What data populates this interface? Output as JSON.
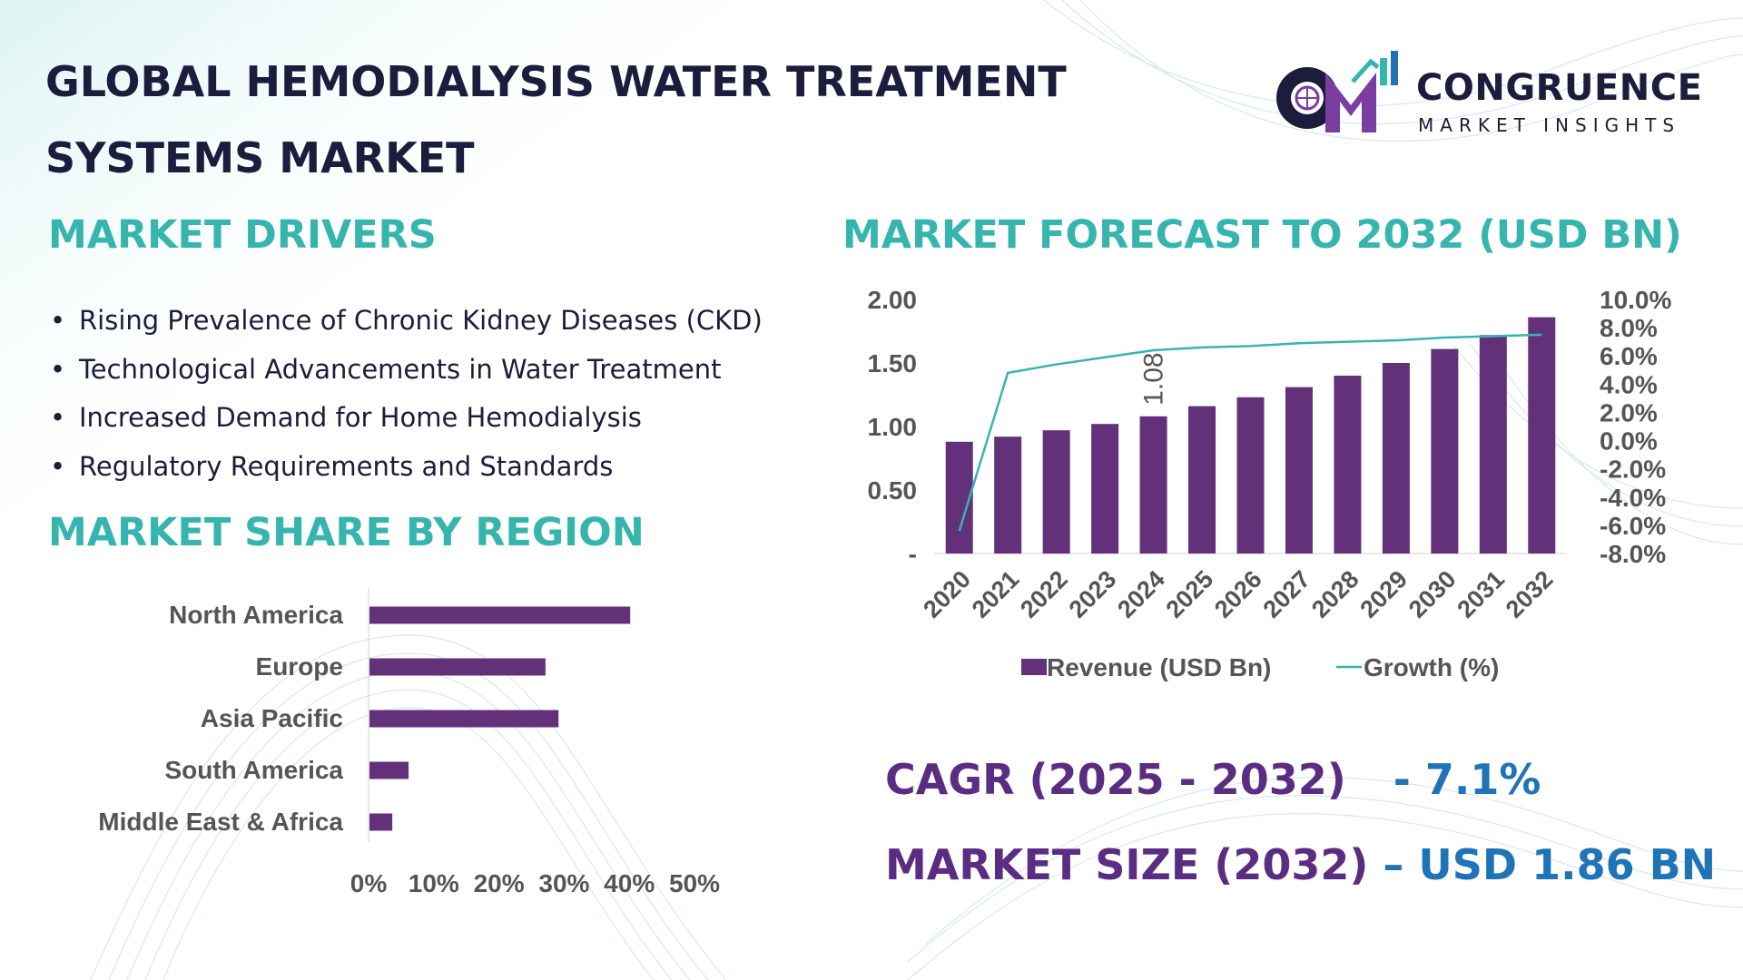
{
  "title_line1": "GLOBAL HEMODIALYSIS WATER TREATMENT",
  "title_line2": "SYSTEMS MARKET",
  "logo": {
    "name": "CONGRUENCE",
    "tagline": "MARKET INSIGHTS"
  },
  "drivers": {
    "heading": "MARKET DRIVERS",
    "items": [
      "Rising Prevalence of Chronic Kidney Diseases (CKD)",
      "Technological Advancements in Water Treatment",
      "Increased Demand for Home Hemodialysis",
      "Regulatory Requirements and Standards"
    ]
  },
  "region_heading": "MARKET SHARE BY REGION",
  "forecast_heading": "MARKET FORECAST TO 2032 (USD BN)",
  "stats": {
    "cagr_label": "CAGR (2025 - 2032)",
    "cagr_value": "- 7.1%",
    "size_label": "MARKET SIZE (2032)",
    "size_value": "– USD 1.86 BN"
  },
  "colors": {
    "bar": "#62317a",
    "line": "#36b5ae",
    "heading": "#36b5ae",
    "stat_label": "#5a2d82",
    "stat_value": "#1f74b8",
    "title": "#1c1c3c"
  },
  "chart_data": [
    {
      "type": "bar",
      "orientation": "horizontal",
      "categories": [
        "North America",
        "Europe",
        "Asia Pacific",
        "South America",
        "Middle East & Africa"
      ],
      "values": [
        40,
        27,
        29,
        6,
        3.5
      ],
      "xlim": [
        0,
        50
      ],
      "x_ticks": [
        "0%",
        "10%",
        "20%",
        "30%",
        "40%",
        "50%"
      ]
    },
    {
      "type": "bar",
      "categories": [
        "2020",
        "2021",
        "2022",
        "2023",
        "2024",
        "2025",
        "2026",
        "2027",
        "2028",
        "2029",
        "2030",
        "2031",
        "2032"
      ],
      "series": [
        {
          "name": "Revenue (USD Bn)",
          "type": "bar",
          "axis": "left",
          "values": [
            0.88,
            0.92,
            0.97,
            1.02,
            1.08,
            1.16,
            1.23,
            1.31,
            1.4,
            1.5,
            1.61,
            1.72,
            1.86
          ]
        },
        {
          "name": "Growth (%)",
          "type": "line",
          "axis": "right",
          "values": [
            -6.4,
            4.8,
            5.4,
            5.9,
            6.4,
            6.6,
            6.7,
            6.9,
            7.0,
            7.1,
            7.3,
            7.4,
            7.5
          ]
        }
      ],
      "data_labels": [
        {
          "category": "2024",
          "text": "1.08"
        }
      ],
      "ylim": [
        0,
        2.0
      ],
      "y_ticks": [
        "-",
        "0.50",
        "1.00",
        "1.50",
        "2.00"
      ],
      "y2lim": [
        -8,
        10
      ],
      "y2_ticks": [
        "-8.0%",
        "-6.0%",
        "-4.0%",
        "-2.0%",
        "0.0%",
        "2.0%",
        "4.0%",
        "6.0%",
        "8.0%",
        "10.0%"
      ],
      "legend": "bottom"
    }
  ]
}
